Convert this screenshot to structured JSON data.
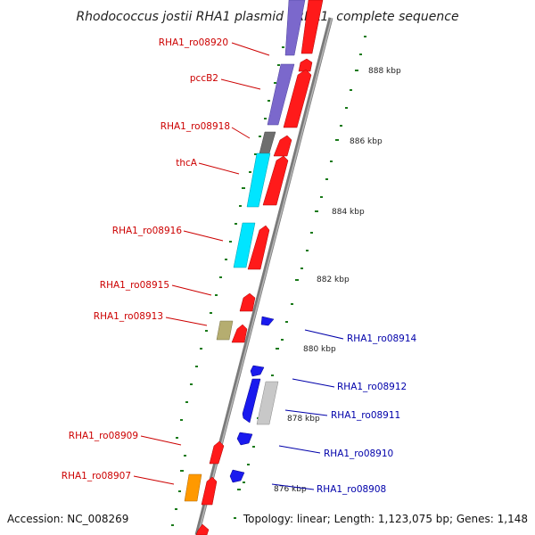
{
  "title": "Rhodococcus jostii RHA1 plasmid pRHL1, complete sequence",
  "footer": {
    "accession": "Accession: NC_008269",
    "topology": "Topology: linear; Length: 1,123,075 bp; Genes: 1,148"
  },
  "colors": {
    "forward_label": "#cc0000",
    "reverse_label": "#0000aa",
    "backbone": "#808080",
    "ticks": "#1a7a1a"
  },
  "ruler": [
    {
      "label": "888 kbp",
      "pos": 888
    },
    {
      "label": "886 kbp",
      "pos": 886
    },
    {
      "label": "884 kbp",
      "pos": 884
    },
    {
      "label": "882 kbp",
      "pos": 882
    },
    {
      "label": "880 kbp",
      "pos": 880
    },
    {
      "label": "878 kbp",
      "pos": 878
    },
    {
      "label": "876 kbp",
      "pos": 876
    }
  ],
  "genes": [
    {
      "label": "RHA1_ro08920",
      "strand": "+",
      "start": 887.85,
      "end": 889.7
    },
    {
      "label": "pccB2",
      "strand": "+",
      "start": 886.95,
      "end": 887.65
    },
    {
      "label": "RHA1_ro08918",
      "strand": "+",
      "start": 885.65,
      "end": 886.05
    },
    {
      "label": "thcA",
      "strand": "+",
      "start": 884.65,
      "end": 885.55
    },
    {
      "label": "RHA1_ro08916",
      "strand": "+",
      "start": 883.45,
      "end": 884.05
    },
    {
      "label": "RHA1_ro08915",
      "strand": "+",
      "start": 881.75,
      "end": 881.95
    },
    {
      "label": "RHA1_ro08913",
      "strand": "+",
      "start": 880.85,
      "end": 881.1
    },
    {
      "label": "RHA1_ro08914",
      "strand": "-",
      "start": 881.1,
      "end": 881.22
    },
    {
      "label": "RHA1_ro08912",
      "strand": "-",
      "start": 879.5,
      "end": 879.65
    },
    {
      "label": "RHA1_ro08911",
      "strand": "-",
      "start": 878.5,
      "end": 879.3
    },
    {
      "label": "RHA1_ro08910",
      "strand": "-",
      "start": 877.92,
      "end": 878.1
    },
    {
      "label": "RHA1_ro08909",
      "strand": "+",
      "start": 877.3,
      "end": 877.6
    },
    {
      "label": "RHA1_ro08908",
      "strand": "-",
      "start": 876.6,
      "end": 876.78
    },
    {
      "label": "RHA1_ro08907",
      "strand": "+",
      "start": 876.1,
      "end": 876.55
    }
  ]
}
